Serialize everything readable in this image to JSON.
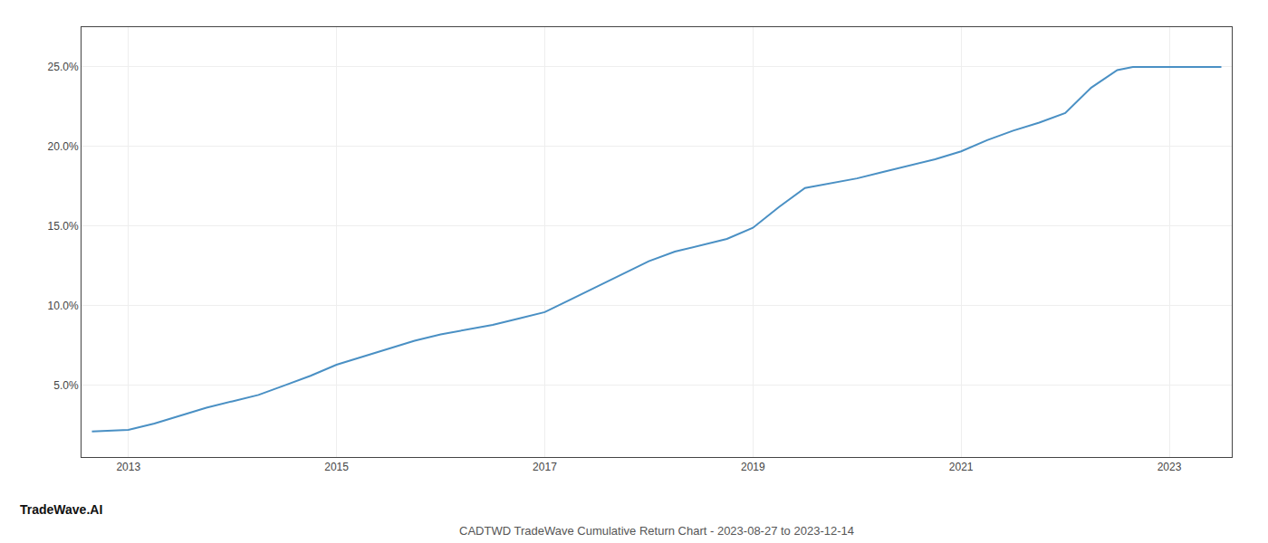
{
  "chart_data": {
    "type": "line",
    "title": "CADTWD TradeWave Cumulative Return Chart - 2023-08-27 to 2023-12-14",
    "annotations": [
      "TradeWave.AI"
    ],
    "x": [
      2012.65,
      2013.0,
      2013.25,
      2013.5,
      2013.75,
      2014.0,
      2014.25,
      2014.5,
      2014.75,
      2015.0,
      2015.25,
      2015.5,
      2015.75,
      2016.0,
      2016.25,
      2016.5,
      2016.75,
      2017.0,
      2017.25,
      2017.5,
      2017.75,
      2018.0,
      2018.25,
      2018.5,
      2018.75,
      2019.0,
      2019.25,
      2019.5,
      2019.75,
      2020.0,
      2020.25,
      2020.5,
      2020.75,
      2021.0,
      2021.25,
      2021.5,
      2021.75,
      2022.0,
      2022.25,
      2022.5,
      2022.65,
      2023.0,
      2023.5
    ],
    "values": [
      0.021,
      0.022,
      0.026,
      0.031,
      0.036,
      0.04,
      0.044,
      0.05,
      0.056,
      0.063,
      0.068,
      0.073,
      0.078,
      0.082,
      0.085,
      0.088,
      0.092,
      0.096,
      0.104,
      0.112,
      0.12,
      0.128,
      0.134,
      0.138,
      0.142,
      0.149,
      0.162,
      0.174,
      0.177,
      0.18,
      0.184,
      0.188,
      0.192,
      0.197,
      0.204,
      0.21,
      0.215,
      0.221,
      0.237,
      0.248,
      0.25,
      0.25,
      0.25
    ],
    "color": "#4a90c4",
    "xlim": [
      2012.55,
      2023.6
    ],
    "xticks": [
      2013,
      2015,
      2017,
      2019,
      2021,
      2023
    ],
    "ylim": [
      0.005,
      0.275
    ],
    "yticks": [
      {
        "value": 0.05,
        "label": "5.0%"
      },
      {
        "value": 0.1,
        "label": "10.0%"
      },
      {
        "value": 0.15,
        "label": "15.0%"
      },
      {
        "value": 0.2,
        "label": "20.0%"
      },
      {
        "value": 0.25,
        "label": "25.0%"
      }
    ],
    "grid": true
  }
}
